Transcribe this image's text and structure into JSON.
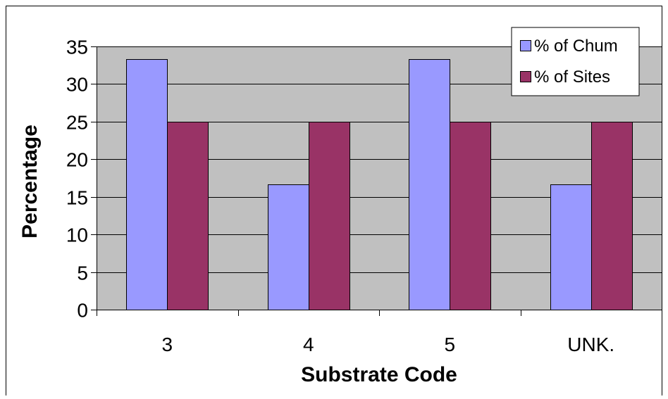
{
  "chart_data": {
    "type": "bar",
    "title": "",
    "xlabel": "Substrate Code",
    "ylabel": "Percentage",
    "categories": [
      "3",
      "4",
      "5",
      "UNK."
    ],
    "ylim": [
      0,
      35
    ],
    "yticks": [
      0,
      5,
      10,
      15,
      20,
      25,
      30,
      35
    ],
    "grid": true,
    "legend_position": "top-right",
    "series": [
      {
        "name": "% of Chum",
        "values": [
          33.3,
          16.7,
          33.3,
          16.7
        ],
        "color": "#9999ff"
      },
      {
        "name": "% of Sites",
        "values": [
          25,
          25,
          25,
          25
        ],
        "color": "#993366"
      }
    ],
    "plot_background": "#c0c0c0"
  }
}
